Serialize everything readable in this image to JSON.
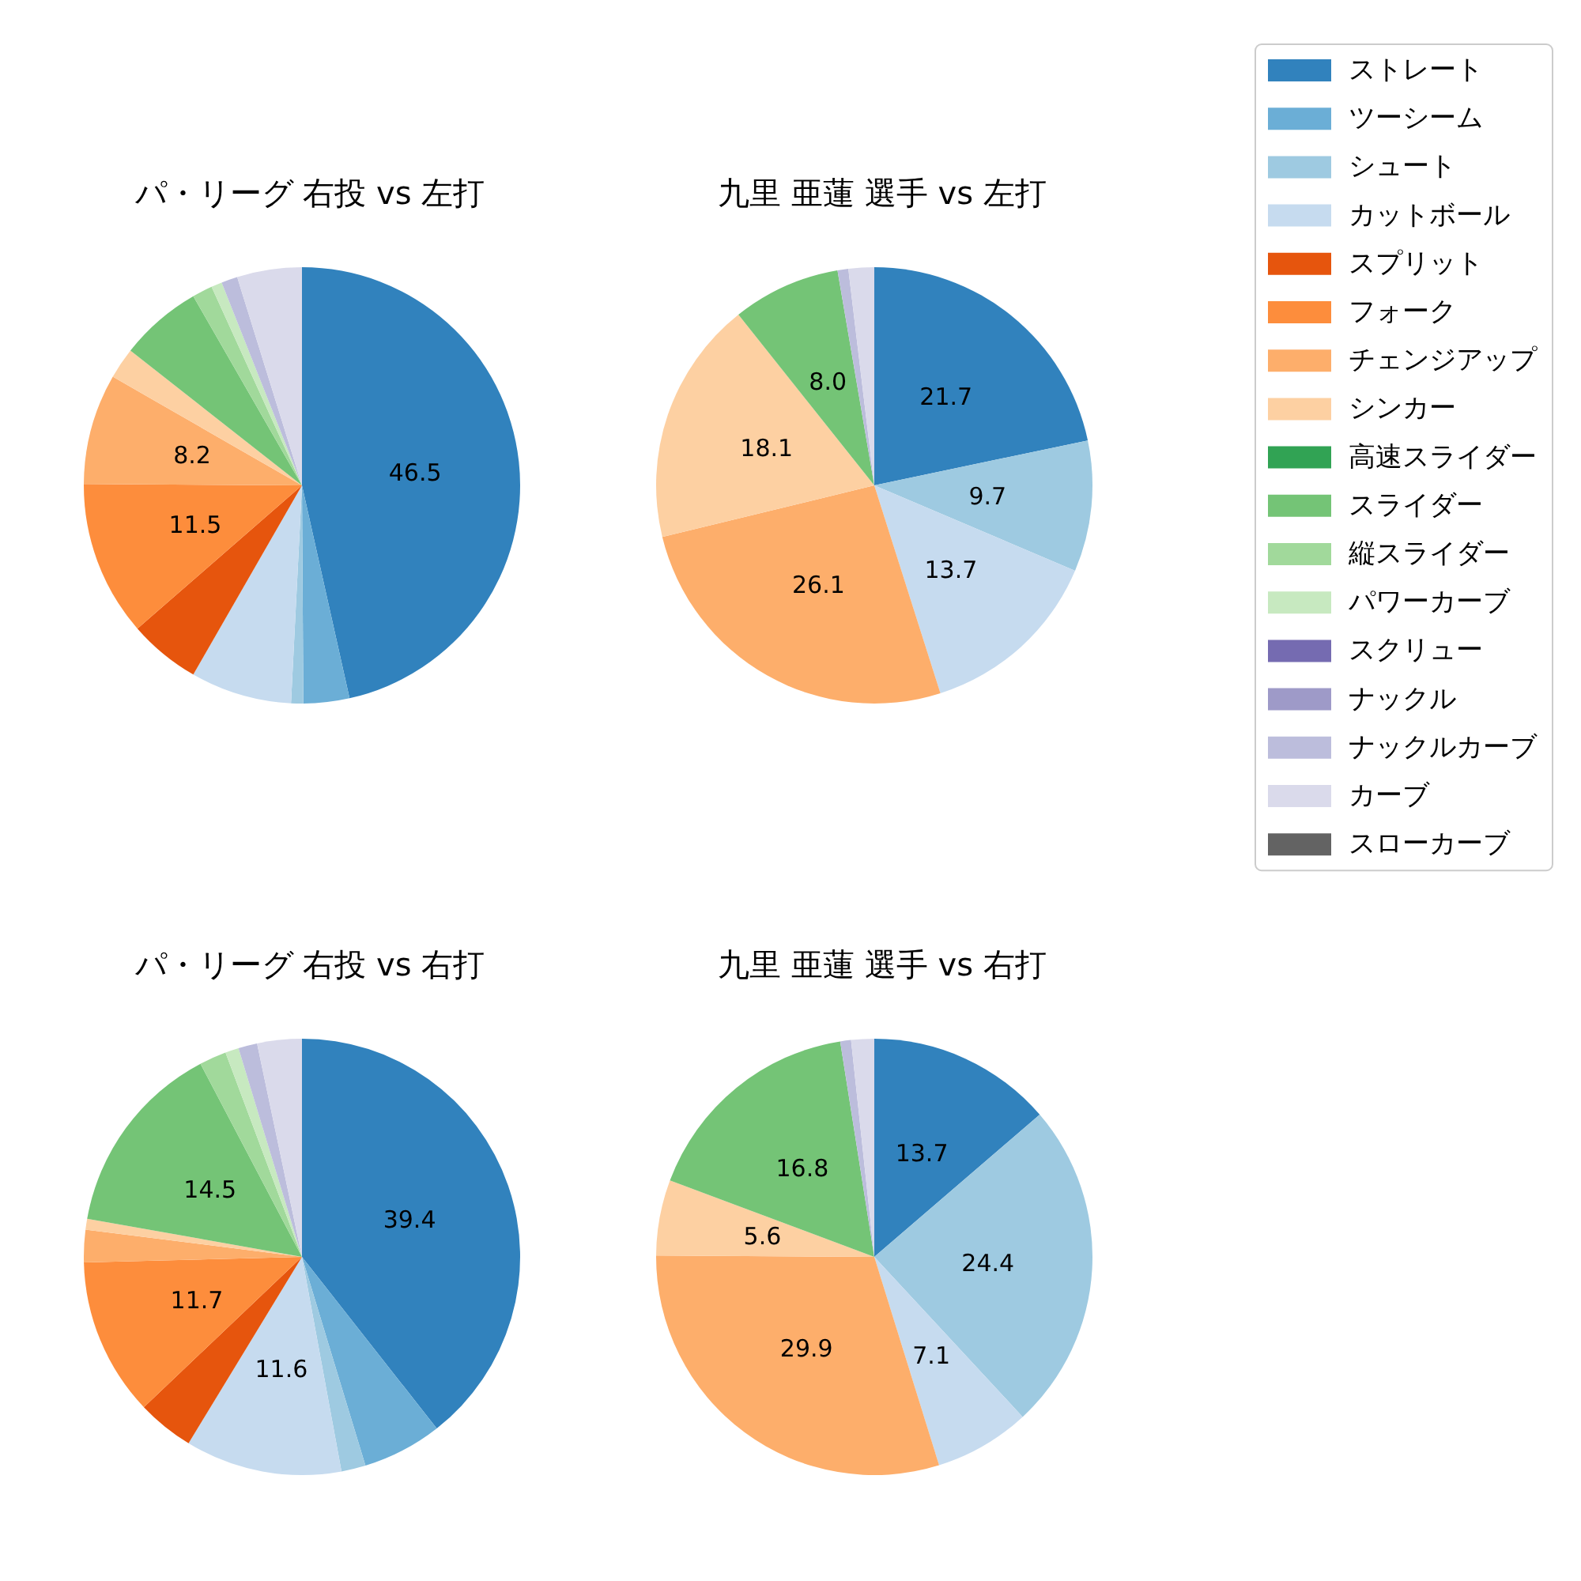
{
  "chart_data": [
    {
      "type": "pie",
      "title": "パ・リーグ 右投 vs 左打",
      "categories": [
        null,
        null,
        null,
        null,
        null,
        null,
        null,
        null,
        null,
        null,
        null,
        null,
        null,
        null,
        null,
        null,
        null
      ],
      "values": [
        46.5,
        3.4,
        0.9,
        7.5,
        5.3,
        11.5,
        8.2,
        2.3,
        0,
        6.1,
        1.5,
        0.8,
        0,
        0,
        1.2,
        4.8,
        0
      ],
      "value_labels": [
        "46.5",
        null,
        null,
        null,
        null,
        "11.5",
        "8.2",
        null,
        null,
        null,
        null,
        null,
        null,
        null,
        null,
        null,
        null
      ],
      "colors": [
        "#3182bd",
        "#6baed6",
        "#9ecae1",
        "#c6dbef",
        "#e6550d",
        "#fd8d3c",
        "#fdae6b",
        "#fdd0a2",
        "#31a354",
        "#74c476",
        "#a1d99b",
        "#c7e9c0",
        "#756bb1",
        "#9e9ac8",
        "#bcbddc",
        "#dadaeb",
        "#636363"
      ],
      "legend": false
    },
    {
      "type": "pie",
      "title": "九里 亜蓮 選手 vs 左打",
      "categories": [
        "ストレート",
        "ツーシーム",
        "シュート",
        "カットボール",
        "スプリット",
        "フォーク",
        "チェンジアップ",
        "シンカー",
        "高速スライダー",
        "スライダー",
        "縦スライダー",
        "パワーカーブ",
        "スクリュー",
        "ナックル",
        "ナックルカーブ",
        "カーブ",
        "スローカーブ"
      ],
      "values": [
        21.7,
        0,
        9.7,
        13.7,
        0,
        0,
        26.1,
        18.1,
        0,
        8.0,
        0,
        0,
        0,
        0,
        0.8,
        1.9,
        0
      ],
      "value_labels": [
        "21.7",
        null,
        "9.7",
        "13.7",
        null,
        null,
        "26.1",
        "18.1",
        null,
        "8.0",
        null,
        null,
        null,
        null,
        null,
        null,
        null
      ],
      "colors": [
        "#3182bd",
        "#6baed6",
        "#9ecae1",
        "#c6dbef",
        "#e6550d",
        "#fd8d3c",
        "#fdae6b",
        "#fdd0a2",
        "#31a354",
        "#74c476",
        "#a1d99b",
        "#c7e9c0",
        "#756bb1",
        "#9e9ac8",
        "#bcbddc",
        "#dadaeb",
        "#636363"
      ],
      "legend": "right"
    },
    {
      "type": "pie",
      "title": "パ・リーグ 右投 vs 右打",
      "categories": [
        null,
        null,
        null,
        null,
        null,
        null,
        null,
        null,
        null,
        null,
        null,
        null,
        null,
        null,
        null,
        null,
        null
      ],
      "values": [
        39.4,
        5.9,
        1.8,
        11.6,
        4.2,
        11.7,
        2.4,
        0.8,
        0,
        14.5,
        2.0,
        1.0,
        0,
        0,
        1.4,
        3.3,
        0
      ],
      "value_labels": [
        "39.4",
        null,
        null,
        "11.6",
        null,
        "11.7",
        null,
        null,
        null,
        "14.5",
        null,
        null,
        null,
        null,
        null,
        null,
        null
      ],
      "colors": [
        "#3182bd",
        "#6baed6",
        "#9ecae1",
        "#c6dbef",
        "#e6550d",
        "#fd8d3c",
        "#fdae6b",
        "#fdd0a2",
        "#31a354",
        "#74c476",
        "#a1d99b",
        "#c7e9c0",
        "#756bb1",
        "#9e9ac8",
        "#bcbddc",
        "#dadaeb",
        "#636363"
      ],
      "legend": false
    },
    {
      "type": "pie",
      "title": "九里 亜蓮 選手 vs 右打",
      "categories": [
        null,
        null,
        null,
        null,
        null,
        null,
        null,
        null,
        null,
        null,
        null,
        null,
        null,
        null,
        null,
        null,
        null
      ],
      "values": [
        13.7,
        0,
        24.4,
        7.1,
        0,
        0,
        29.9,
        5.6,
        0,
        16.8,
        0,
        0,
        0,
        0,
        0.8,
        1.7,
        0
      ],
      "value_labels": [
        "13.7",
        null,
        "24.4",
        "7.1",
        null,
        null,
        "29.9",
        "5.6",
        null,
        "16.8",
        null,
        null,
        null,
        null,
        null,
        null,
        null
      ],
      "colors": [
        "#3182bd",
        "#6baed6",
        "#9ecae1",
        "#c6dbef",
        "#e6550d",
        "#fd8d3c",
        "#fdae6b",
        "#fdd0a2",
        "#31a354",
        "#74c476",
        "#a1d99b",
        "#c7e9c0",
        "#756bb1",
        "#9e9ac8",
        "#bcbddc",
        "#dadaeb",
        "#636363"
      ],
      "legend": false
    }
  ]
}
